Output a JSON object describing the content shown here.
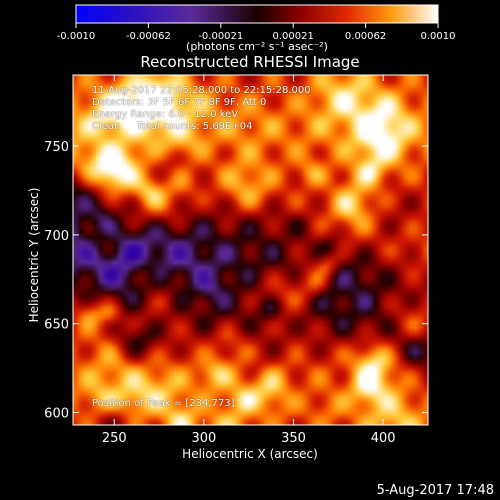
{
  "colorbar": {
    "ticks": [
      "-0.0010",
      "-0.00062",
      "-0.00021",
      "0.00021",
      "0.00062",
      "0.0010"
    ],
    "unit_label": "(photons cm⁻² s⁻¹ asec⁻²)"
  },
  "chart_data": {
    "type": "heatmap",
    "title": "Reconstructed RHESSI Image",
    "xlabel": "Heliocentric X (arcsec)",
    "ylabel": "Heliocentric Y (arcsec)",
    "xlim": [
      227,
      425
    ],
    "ylim": [
      593,
      790
    ],
    "x_ticks": [
      250,
      300,
      350,
      400
    ],
    "y_ticks": [
      600,
      650,
      700,
      750
    ],
    "x_tick_labels": [
      "250",
      "300",
      "350",
      "400"
    ],
    "y_tick_labels": [
      "600",
      "650",
      "700",
      "750"
    ],
    "value_range": [
      -0.001,
      0.001
    ],
    "colormap": [
      "#0000ff",
      "#3000a0",
      "#5a2a9a",
      "#200000",
      "#8a0000",
      "#d21800",
      "#ff7a00",
      "#ffd040",
      "#ffffff"
    ],
    "peak_position": [
      234,
      773
    ],
    "annotations": [
      "11-Aug-2017 22:05:28.000 to 22:15:28.000",
      "Detectors: 3F 5F 6F 7F 8F 9F, Att 0",
      "Energy Range: 6.0 - 12.0 keV",
      "Clean     Total counts: 5.69E+04",
      "Position of Peak = [234,773]"
    ]
  },
  "footer": {
    "timestamp": "5-Aug-2017 17:48"
  }
}
